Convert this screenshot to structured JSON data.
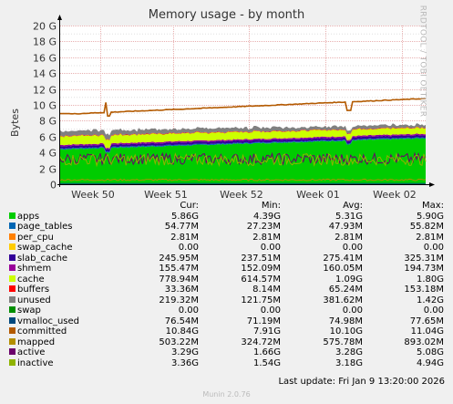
{
  "chart_data": {
    "type": "area",
    "title": "Memory usage - by month",
    "ylabel": "Bytes",
    "side_label": "RRDTOOL / TOBI OETIKER",
    "ylim": [
      0,
      20
    ],
    "y_ticks": [
      "0",
      "2 G",
      "4 G",
      "6 G",
      "8 G",
      "10 G",
      "12 G",
      "14 G",
      "16 G",
      "18 G",
      "20 G"
    ],
    "x_ticks": [
      "Week 50",
      "Week 51",
      "Week 52",
      "Week 01",
      "Week 02"
    ],
    "grid": true,
    "columns": [
      "Cur:",
      "Min:",
      "Avg:",
      "Max:"
    ],
    "series": [
      {
        "name": "apps",
        "color": "#00cc00",
        "cur": "5.86G",
        "min": "4.39G",
        "avg": "5.31G",
        "max": "5.90G"
      },
      {
        "name": "page_tables",
        "color": "#0066b3",
        "cur": "54.77M",
        "min": "27.23M",
        "avg": "47.93M",
        "max": "55.82M"
      },
      {
        "name": "per_cpu",
        "color": "#ff8000",
        "cur": "2.81M",
        "min": "2.81M",
        "avg": "2.81M",
        "max": "2.81M"
      },
      {
        "name": "swap_cache",
        "color": "#ffcc00",
        "cur": "0.00",
        "min": "0.00",
        "avg": "0.00",
        "max": "0.00"
      },
      {
        "name": "slab_cache",
        "color": "#330099",
        "cur": "245.95M",
        "min": "237.51M",
        "avg": "275.41M",
        "max": "325.31M"
      },
      {
        "name": "shmem",
        "color": "#990099",
        "cur": "155.47M",
        "min": "152.09M",
        "avg": "160.05M",
        "max": "194.73M"
      },
      {
        "name": "cache",
        "color": "#ccff00",
        "cur": "778.94M",
        "min": "614.57M",
        "avg": "1.09G",
        "max": "1.80G"
      },
      {
        "name": "buffers",
        "color": "#ff0000",
        "cur": "33.36M",
        "min": "8.14M",
        "avg": "65.24M",
        "max": "153.18M"
      },
      {
        "name": "unused",
        "color": "#808080",
        "cur": "219.32M",
        "min": "121.75M",
        "avg": "381.62M",
        "max": "1.42G"
      },
      {
        "name": "swap",
        "color": "#008f00",
        "cur": "0.00",
        "min": "0.00",
        "avg": "0.00",
        "max": "0.00"
      },
      {
        "name": "vmalloc_used",
        "color": "#00487d",
        "cur": "76.54M",
        "min": "71.19M",
        "avg": "74.98M",
        "max": "77.65M"
      },
      {
        "name": "committed",
        "color": "#b35a00",
        "cur": "10.84G",
        "min": "7.91G",
        "avg": "10.10G",
        "max": "11.04G"
      },
      {
        "name": "mapped",
        "color": "#b38f00",
        "cur": "503.22M",
        "min": "324.72M",
        "avg": "575.78M",
        "max": "893.02M"
      },
      {
        "name": "active",
        "color": "#6b006b",
        "cur": "3.29G",
        "min": "1.66G",
        "avg": "3.28G",
        "max": "5.08G"
      },
      {
        "name": "inactive",
        "color": "#8fb300",
        "cur": "3.36G",
        "min": "1.54G",
        "avg": "3.18G",
        "max": "4.94G"
      }
    ]
  },
  "footer": {
    "last_update": "Last update:  Fri Jan  9 13:20:00 2026",
    "munin": "Munin 2.0.76"
  },
  "palette": {
    "background": "#f0f0f0",
    "plot_bg": "#ffffff",
    "grid_major": "#e8b0b0",
    "grid_minor": "#e0e0e0"
  }
}
